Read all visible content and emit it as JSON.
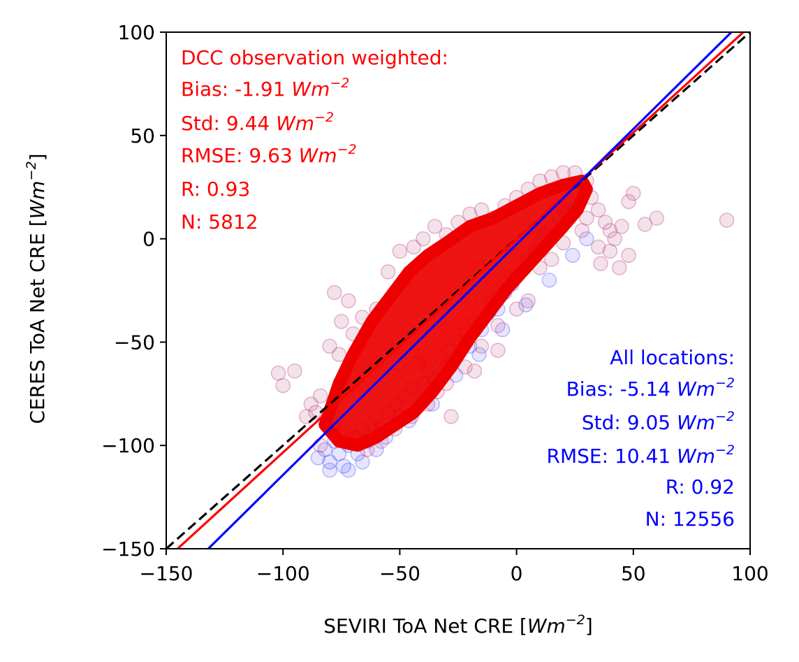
{
  "chart_data": {
    "type": "scatter",
    "xlabel": "SEVIRI ToA Net CRE [",
    "xlabel_unit": "Wm",
    "xlabel_exp": "−2",
    "xlabel_close": "]",
    "ylabel": "CERES ToA Net CRE [",
    "ylabel_unit": "Wm",
    "ylabel_exp": "−2",
    "ylabel_close": "]",
    "xlim": [
      -150,
      100
    ],
    "ylim": [
      -150,
      100
    ],
    "xticks": [
      -150,
      -100,
      -50,
      0,
      50,
      100
    ],
    "yticks": [
      -150,
      -100,
      -50,
      0,
      50,
      100
    ],
    "xtick_labels": [
      "−150",
      "−100",
      "−50",
      "0",
      "50",
      "100"
    ],
    "ytick_labels": [
      "−150",
      "−100",
      "−50",
      "0",
      "50",
      "100"
    ],
    "grid": false,
    "unit_text": "Wm",
    "unit_exp": "−2",
    "annotations": {
      "dcc": {
        "color": "#ff0000",
        "title": "DCC observation weighted:",
        "bias": "Bias: -1.91",
        "std": "Std: 9.44",
        "rmse": "RMSE: 9.63",
        "r": "R: 0.93",
        "n": "N: 5812"
      },
      "all": {
        "color": "#0000ff",
        "title": "All locations:",
        "bias": "Bias: -5.14",
        "std": "Std: 9.05",
        "rmse": "RMSE: 10.41",
        "r": "R: 0.92",
        "n": "N: 12556"
      }
    },
    "series": [
      {
        "kind": "line",
        "style": "dashed",
        "color": "#000000",
        "x": [
          -150,
          100
        ],
        "y": [
          -150,
          100
        ]
      },
      {
        "kind": "line",
        "color": "#ff0000",
        "x": [
          -150,
          100
        ],
        "y": [
          -155,
          103
        ]
      },
      {
        "kind": "line",
        "color": "#0000ff",
        "x": [
          -132,
          92
        ],
        "y": [
          -150,
          100
        ]
      },
      {
        "kind": "scatter",
        "color": "#0000ff",
        "opacity": 0.1,
        "points": [
          [
            -85,
            -106
          ],
          [
            -82,
            -102
          ],
          [
            -80,
            -108
          ],
          [
            -78,
            -98
          ],
          [
            -76,
            -104
          ],
          [
            -74,
            -110
          ],
          [
            -72,
            -100
          ],
          [
            -70,
            -96
          ],
          [
            -68,
            -104
          ],
          [
            -66,
            -92
          ],
          [
            -64,
            -98
          ],
          [
            -62,
            -90
          ],
          [
            -60,
            -86
          ],
          [
            -58,
            -92
          ],
          [
            -55,
            -84
          ],
          [
            -52,
            -80
          ],
          [
            -50,
            -86
          ],
          [
            -48,
            -76
          ],
          [
            -45,
            -72
          ],
          [
            -42,
            -78
          ],
          [
            -40,
            -70
          ],
          [
            -38,
            -64
          ],
          [
            -35,
            -68
          ],
          [
            -32,
            -58
          ],
          [
            -30,
            -62
          ],
          [
            -28,
            -54
          ],
          [
            -25,
            -50
          ],
          [
            -22,
            -46
          ],
          [
            -20,
            -52
          ],
          [
            -18,
            -40
          ],
          [
            -15,
            -44
          ],
          [
            -12,
            -36
          ],
          [
            -10,
            -30
          ],
          [
            -8,
            -34
          ],
          [
            -5,
            -26
          ],
          [
            -2,
            -22
          ],
          [
            0,
            -18
          ],
          [
            3,
            -14
          ],
          [
            5,
            -10
          ],
          [
            8,
            -6
          ],
          [
            10,
            -2
          ],
          [
            12,
            2
          ],
          [
            15,
            6
          ],
          [
            18,
            10
          ],
          [
            20,
            14
          ],
          [
            22,
            18
          ],
          [
            -80,
            -112
          ],
          [
            -72,
            -112
          ],
          [
            -66,
            -108
          ],
          [
            -60,
            -102
          ],
          [
            -56,
            -96
          ],
          [
            -46,
            -88
          ],
          [
            -36,
            -80
          ],
          [
            -26,
            -66
          ],
          [
            -16,
            -56
          ],
          [
            -6,
            -44
          ],
          [
            4,
            -32
          ],
          [
            14,
            -20
          ],
          [
            24,
            -8
          ],
          [
            30,
            0
          ]
        ]
      },
      {
        "kind": "scatter",
        "color": "#c06090",
        "opacity": 0.18,
        "points": [
          [
            -102,
            -65
          ],
          [
            -100,
            -71
          ],
          [
            -95,
            -64
          ],
          [
            -78,
            -26
          ],
          [
            -75,
            -40
          ],
          [
            -72,
            -30
          ],
          [
            -84,
            -76
          ],
          [
            -86,
            -84
          ],
          [
            -80,
            -52
          ],
          [
            -76,
            -56
          ],
          [
            -70,
            -46
          ],
          [
            -66,
            -38
          ],
          [
            -60,
            -34
          ],
          [
            -55,
            -16
          ],
          [
            -50,
            -6
          ],
          [
            -48,
            -20
          ],
          [
            -44,
            -4
          ],
          [
            -40,
            0
          ],
          [
            -38,
            -10
          ],
          [
            -35,
            6
          ],
          [
            -30,
            2
          ],
          [
            -25,
            8
          ],
          [
            -20,
            12
          ],
          [
            -15,
            14
          ],
          [
            -10,
            10
          ],
          [
            -5,
            16
          ],
          [
            0,
            20
          ],
          [
            5,
            24
          ],
          [
            10,
            28
          ],
          [
            15,
            30
          ],
          [
            20,
            32
          ],
          [
            25,
            32
          ],
          [
            30,
            28
          ],
          [
            32,
            20
          ],
          [
            35,
            14
          ],
          [
            38,
            8
          ],
          [
            40,
            4
          ],
          [
            42,
            0
          ],
          [
            45,
            6
          ],
          [
            48,
            18
          ],
          [
            50,
            22
          ],
          [
            30,
            10
          ],
          [
            25,
            14
          ],
          [
            28,
            4
          ],
          [
            35,
            -4
          ],
          [
            40,
            -6
          ],
          [
            44,
            -14
          ],
          [
            36,
            -12
          ],
          [
            20,
            -2
          ],
          [
            15,
            -10
          ],
          [
            10,
            -14
          ],
          [
            60,
            10
          ],
          [
            90,
            9
          ],
          [
            55,
            7
          ],
          [
            48,
            -8
          ],
          [
            5,
            -30
          ],
          [
            0,
            -34
          ],
          [
            -8,
            -42
          ],
          [
            -15,
            -52
          ],
          [
            -22,
            -62
          ],
          [
            -30,
            -70
          ],
          [
            -38,
            -80
          ],
          [
            -45,
            -86
          ],
          [
            -52,
            -92
          ],
          [
            -58,
            -98
          ],
          [
            -64,
            -102
          ],
          [
            -68,
            -96
          ],
          [
            -74,
            -92
          ],
          [
            -78,
            -90
          ],
          [
            -82,
            -88
          ],
          [
            -88,
            -80
          ],
          [
            -90,
            -86
          ],
          [
            -84,
            -100
          ],
          [
            -60,
            -60
          ],
          [
            -56,
            -50
          ],
          [
            -62,
            -44
          ],
          [
            -66,
            -64
          ],
          [
            -70,
            -70
          ],
          [
            -74,
            -72
          ],
          [
            -46,
            -44
          ],
          [
            -36,
            -34
          ],
          [
            -26,
            -24
          ],
          [
            -16,
            -14
          ],
          [
            -6,
            -4
          ],
          [
            4,
            4
          ],
          [
            -40,
            -56
          ],
          [
            -30,
            -44
          ],
          [
            -20,
            -30
          ],
          [
            -10,
            -20
          ],
          [
            0,
            -8
          ],
          [
            10,
            4
          ],
          [
            20,
            14
          ],
          [
            -52,
            -66
          ],
          [
            -42,
            -60
          ],
          [
            -32,
            -50
          ],
          [
            -24,
            -40
          ],
          [
            -12,
            -28
          ],
          [
            -2,
            -18
          ],
          [
            8,
            -6
          ],
          [
            -28,
            -86
          ],
          [
            -34,
            -74
          ],
          [
            -18,
            -64
          ],
          [
            -8,
            -54
          ]
        ]
      }
    ],
    "density_band": {
      "color": "#ee0000",
      "polygon_data": [
        [
          -82,
          -90
        ],
        [
          -76,
          -70
        ],
        [
          -70,
          -56
        ],
        [
          -62,
          -40
        ],
        [
          -54,
          -28
        ],
        [
          -46,
          -16
        ],
        [
          -38,
          -8
        ],
        [
          -30,
          -2
        ],
        [
          -20,
          6
        ],
        [
          -10,
          10
        ],
        [
          0,
          16
        ],
        [
          10,
          22
        ],
        [
          20,
          26
        ],
        [
          28,
          28
        ],
        [
          30,
          24
        ],
        [
          26,
          14
        ],
        [
          20,
          6
        ],
        [
          12,
          -4
        ],
        [
          4,
          -14
        ],
        [
          -4,
          -24
        ],
        [
          -12,
          -36
        ],
        [
          -20,
          -48
        ],
        [
          -28,
          -62
        ],
        [
          -36,
          -74
        ],
        [
          -44,
          -84
        ],
        [
          -52,
          -90
        ],
        [
          -60,
          -96
        ],
        [
          -68,
          -100
        ],
        [
          -76,
          -98
        ]
      ]
    }
  }
}
